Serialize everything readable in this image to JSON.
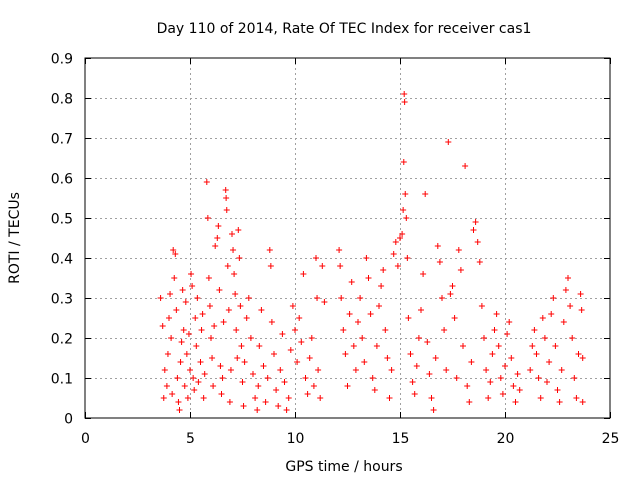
{
  "chart_data": {
    "type": "scatter",
    "title": "Day 110 of 2014, Rate Of TEC Index for receiver cas1",
    "xlabel": "GPS time / hours",
    "ylabel": "ROTI / TECUs",
    "xlim": [
      0,
      25
    ],
    "ylim": [
      0,
      0.9
    ],
    "xticks": [
      0,
      5,
      10,
      15,
      20,
      25
    ],
    "yticks": [
      0,
      0.1,
      0.2,
      0.3,
      0.4,
      0.5,
      0.6,
      0.7,
      0.8,
      0.9
    ],
    "xtick_labels": [
      "0",
      "5",
      "10",
      "15",
      "20",
      "25"
    ],
    "ytick_labels": [
      "0",
      "0.1",
      "0.2",
      "0.3",
      "0.4",
      "0.5",
      "0.6",
      "0.7",
      "0.8",
      "0.9"
    ],
    "grid": true,
    "marker": "+",
    "color": "#ff0000",
    "series": [
      {
        "name": "cas1",
        "points": [
          [
            3.6,
            0.3
          ],
          [
            3.7,
            0.23
          ],
          [
            3.75,
            0.05
          ],
          [
            3.8,
            0.12
          ],
          [
            3.9,
            0.08
          ],
          [
            3.95,
            0.16
          ],
          [
            4.0,
            0.25
          ],
          [
            4.05,
            0.31
          ],
          [
            4.1,
            0.2
          ],
          [
            4.15,
            0.06
          ],
          [
            4.2,
            0.42
          ],
          [
            4.25,
            0.35
          ],
          [
            4.3,
            0.41
          ],
          [
            4.35,
            0.27
          ],
          [
            4.4,
            0.1
          ],
          [
            4.45,
            0.04
          ],
          [
            4.5,
            0.02
          ],
          [
            4.55,
            0.14
          ],
          [
            4.6,
            0.19
          ],
          [
            4.65,
            0.32
          ],
          [
            4.7,
            0.22
          ],
          [
            4.75,
            0.08
          ],
          [
            4.8,
            0.29
          ],
          [
            4.85,
            0.16
          ],
          [
            4.9,
            0.05
          ],
          [
            4.95,
            0.21
          ],
          [
            5.0,
            0.12
          ],
          [
            5.05,
            0.36
          ],
          [
            5.1,
            0.33
          ],
          [
            5.15,
            0.1
          ],
          [
            5.2,
            0.07
          ],
          [
            5.25,
            0.25
          ],
          [
            5.3,
            0.18
          ],
          [
            5.35,
            0.3
          ],
          [
            5.4,
            0.09
          ],
          [
            5.5,
            0.14
          ],
          [
            5.55,
            0.22
          ],
          [
            5.6,
            0.26
          ],
          [
            5.65,
            0.05
          ],
          [
            5.7,
            0.11
          ],
          [
            5.8,
            0.59
          ],
          [
            5.85,
            0.5
          ],
          [
            5.9,
            0.35
          ],
          [
            5.95,
            0.28
          ],
          [
            6.0,
            0.2
          ],
          [
            6.05,
            0.15
          ],
          [
            6.1,
            0.08
          ],
          [
            6.15,
            0.23
          ],
          [
            6.2,
            0.43
          ],
          [
            6.3,
            0.45
          ],
          [
            6.35,
            0.48
          ],
          [
            6.4,
            0.32
          ],
          [
            6.45,
            0.13
          ],
          [
            6.5,
            0.06
          ],
          [
            6.55,
            0.1
          ],
          [
            6.6,
            0.24
          ],
          [
            6.7,
            0.57
          ],
          [
            6.72,
            0.55
          ],
          [
            6.75,
            0.52
          ],
          [
            6.8,
            0.38
          ],
          [
            6.85,
            0.27
          ],
          [
            6.9,
            0.04
          ],
          [
            6.95,
            0.12
          ],
          [
            7.0,
            0.46
          ],
          [
            7.05,
            0.42
          ],
          [
            7.1,
            0.36
          ],
          [
            7.15,
            0.31
          ],
          [
            7.2,
            0.22
          ],
          [
            7.25,
            0.15
          ],
          [
            7.3,
            0.47
          ],
          [
            7.35,
            0.4
          ],
          [
            7.4,
            0.28
          ],
          [
            7.45,
            0.18
          ],
          [
            7.5,
            0.09
          ],
          [
            7.55,
            0.03
          ],
          [
            7.6,
            0.14
          ],
          [
            7.7,
            0.25
          ],
          [
            7.8,
            0.3
          ],
          [
            7.9,
            0.2
          ],
          [
            8.0,
            0.11
          ],
          [
            8.1,
            0.05
          ],
          [
            8.2,
            0.02
          ],
          [
            8.25,
            0.08
          ],
          [
            8.3,
            0.18
          ],
          [
            8.4,
            0.27
          ],
          [
            8.5,
            0.13
          ],
          [
            8.6,
            0.04
          ],
          [
            8.7,
            0.1
          ],
          [
            8.8,
            0.42
          ],
          [
            8.85,
            0.38
          ],
          [
            8.9,
            0.24
          ],
          [
            9.0,
            0.16
          ],
          [
            9.1,
            0.07
          ],
          [
            9.2,
            0.03
          ],
          [
            9.3,
            0.12
          ],
          [
            9.4,
            0.21
          ],
          [
            9.5,
            0.09
          ],
          [
            9.6,
            0.02
          ],
          [
            9.7,
            0.05
          ],
          [
            9.8,
            0.17
          ],
          [
            9.9,
            0.28
          ],
          [
            10.0,
            0.22
          ],
          [
            10.1,
            0.14
          ],
          [
            10.2,
            0.25
          ],
          [
            10.3,
            0.19
          ],
          [
            10.4,
            0.36
          ],
          [
            10.5,
            0.1
          ],
          [
            10.6,
            0.06
          ],
          [
            10.7,
            0.15
          ],
          [
            10.8,
            0.2
          ],
          [
            10.9,
            0.08
          ],
          [
            11.0,
            0.4
          ],
          [
            11.05,
            0.3
          ],
          [
            11.1,
            0.12
          ],
          [
            11.2,
            0.05
          ],
          [
            11.3,
            0.38
          ],
          [
            11.4,
            0.29
          ],
          [
            12.1,
            0.42
          ],
          [
            12.15,
            0.38
          ],
          [
            12.2,
            0.3
          ],
          [
            12.3,
            0.22
          ],
          [
            12.4,
            0.16
          ],
          [
            12.5,
            0.08
          ],
          [
            12.6,
            0.26
          ],
          [
            12.7,
            0.34
          ],
          [
            12.8,
            0.18
          ],
          [
            12.9,
            0.12
          ],
          [
            13.0,
            0.24
          ],
          [
            13.1,
            0.3
          ],
          [
            13.2,
            0.2
          ],
          [
            13.3,
            0.14
          ],
          [
            13.4,
            0.4
          ],
          [
            13.5,
            0.35
          ],
          [
            13.6,
            0.26
          ],
          [
            13.7,
            0.1
          ],
          [
            13.8,
            0.07
          ],
          [
            13.9,
            0.18
          ],
          [
            14.0,
            0.28
          ],
          [
            14.1,
            0.33
          ],
          [
            14.2,
            0.37
          ],
          [
            14.3,
            0.22
          ],
          [
            14.4,
            0.15
          ],
          [
            14.5,
            0.05
          ],
          [
            14.6,
            0.12
          ],
          [
            14.7,
            0.41
          ],
          [
            14.8,
            0.44
          ],
          [
            14.9,
            0.38
          ],
          [
            15.0,
            0.45
          ],
          [
            15.1,
            0.46
          ],
          [
            15.15,
            0.52
          ],
          [
            15.18,
            0.64
          ],
          [
            15.2,
            0.81
          ],
          [
            15.22,
            0.79
          ],
          [
            15.25,
            0.56
          ],
          [
            15.3,
            0.5
          ],
          [
            15.35,
            0.4
          ],
          [
            15.4,
            0.25
          ],
          [
            15.5,
            0.16
          ],
          [
            15.6,
            0.09
          ],
          [
            15.7,
            0.06
          ],
          [
            15.8,
            0.13
          ],
          [
            15.9,
            0.2
          ],
          [
            16.0,
            0.27
          ],
          [
            16.1,
            0.36
          ],
          [
            16.2,
            0.56
          ],
          [
            16.3,
            0.19
          ],
          [
            16.4,
            0.11
          ],
          [
            16.5,
            0.05
          ],
          [
            16.6,
            0.02
          ],
          [
            16.7,
            0.15
          ],
          [
            16.8,
            0.43
          ],
          [
            16.9,
            0.39
          ],
          [
            17.0,
            0.3
          ],
          [
            17.1,
            0.22
          ],
          [
            17.2,
            0.12
          ],
          [
            17.3,
            0.69
          ],
          [
            17.4,
            0.31
          ],
          [
            17.5,
            0.33
          ],
          [
            17.6,
            0.25
          ],
          [
            17.7,
            0.1
          ],
          [
            17.8,
            0.42
          ],
          [
            17.9,
            0.37
          ],
          [
            18.0,
            0.18
          ],
          [
            18.1,
            0.63
          ],
          [
            18.2,
            0.08
          ],
          [
            18.3,
            0.04
          ],
          [
            18.4,
            0.14
          ],
          [
            18.5,
            0.47
          ],
          [
            18.6,
            0.49
          ],
          [
            18.7,
            0.44
          ],
          [
            18.8,
            0.39
          ],
          [
            18.9,
            0.28
          ],
          [
            19.0,
            0.2
          ],
          [
            19.1,
            0.12
          ],
          [
            19.2,
            0.05
          ],
          [
            19.3,
            0.09
          ],
          [
            19.4,
            0.16
          ],
          [
            19.5,
            0.22
          ],
          [
            19.6,
            0.26
          ],
          [
            19.7,
            0.18
          ],
          [
            19.8,
            0.1
          ],
          [
            19.9,
            0.06
          ],
          [
            20.0,
            0.13
          ],
          [
            20.1,
            0.21
          ],
          [
            20.2,
            0.24
          ],
          [
            20.3,
            0.15
          ],
          [
            20.4,
            0.08
          ],
          [
            20.5,
            0.04
          ],
          [
            20.6,
            0.11
          ],
          [
            20.7,
            0.07
          ],
          [
            21.2,
            0.12
          ],
          [
            21.3,
            0.18
          ],
          [
            21.4,
            0.22
          ],
          [
            21.5,
            0.16
          ],
          [
            21.6,
            0.1
          ],
          [
            21.7,
            0.05
          ],
          [
            21.8,
            0.25
          ],
          [
            21.9,
            0.2
          ],
          [
            22.0,
            0.09
          ],
          [
            22.1,
            0.14
          ],
          [
            22.2,
            0.26
          ],
          [
            22.3,
            0.3
          ],
          [
            22.4,
            0.18
          ],
          [
            22.5,
            0.07
          ],
          [
            22.6,
            0.04
          ],
          [
            22.7,
            0.12
          ],
          [
            22.8,
            0.24
          ],
          [
            22.9,
            0.32
          ],
          [
            23.0,
            0.35
          ],
          [
            23.1,
            0.28
          ],
          [
            23.2,
            0.2
          ],
          [
            23.3,
            0.1
          ],
          [
            23.4,
            0.05
          ],
          [
            23.5,
            0.16
          ],
          [
            23.6,
            0.31
          ],
          [
            23.65,
            0.27
          ],
          [
            23.7,
            0.15
          ],
          [
            23.7,
            0.04
          ]
        ]
      }
    ]
  }
}
